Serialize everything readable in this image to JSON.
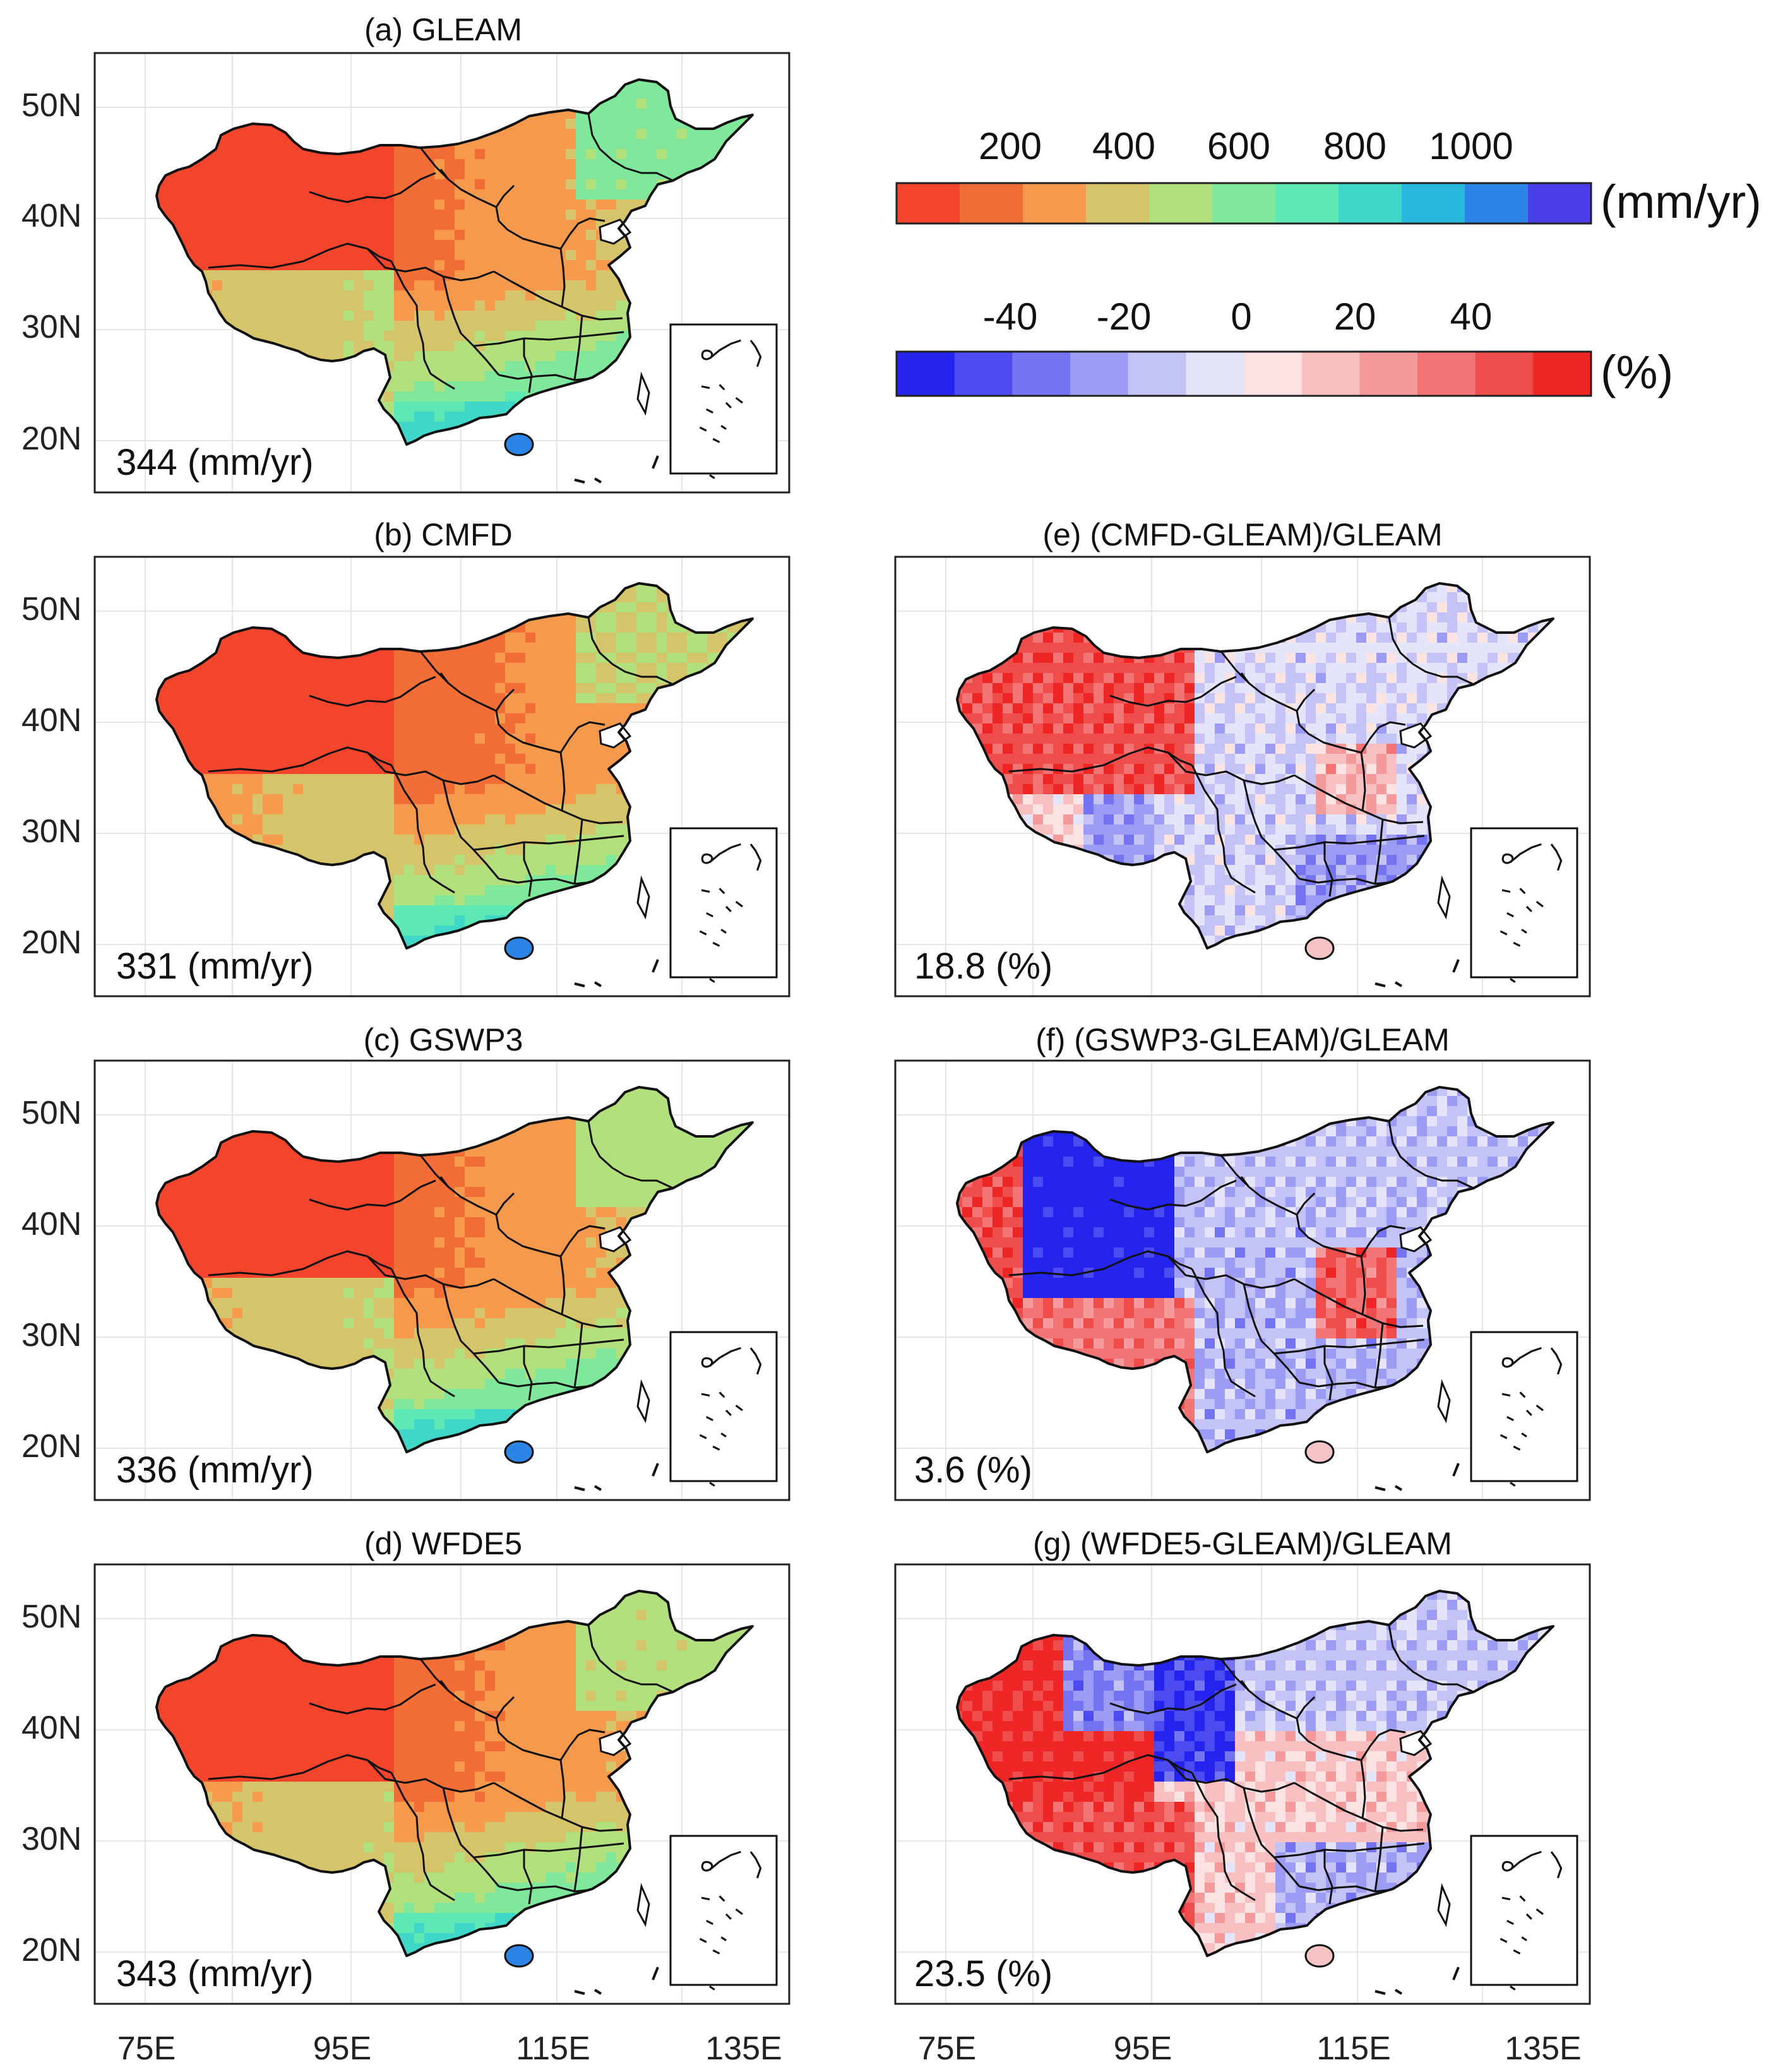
{
  "figure": {
    "colorbar_abs": {
      "labels": [
        "200",
        "400",
        "600",
        "800",
        "1000"
      ],
      "unit": "(mm/yr)",
      "colors": [
        "#f2452c",
        "#f36d36",
        "#f59a4c",
        "#d6c46a",
        "#b2e07c",
        "#7fe89a",
        "#5ee8b4",
        "#3fd7c8",
        "#27b8dd",
        "#2a85e6",
        "#4a3ee8"
      ]
    },
    "colorbar_pct": {
      "labels": [
        "-40",
        "-20",
        "0",
        "20",
        "40"
      ],
      "unit": "(%)",
      "colors": [
        "#2424ee",
        "#4b4bf0",
        "#7474f2",
        "#9c9cf4",
        "#c3c3f6",
        "#e4e4fa",
        "#fbe3e3",
        "#f8c0c0",
        "#f59a9a",
        "#f27474",
        "#ef4c4c",
        "#ee2626"
      ]
    },
    "lon_ticks": [
      "75E",
      "95E",
      "115E",
      "135E"
    ],
    "lat_ticks": [
      "50N",
      "40N",
      "30N",
      "20N"
    ],
    "panels": [
      {
        "id": "a",
        "title": "(a) GLEAM",
        "stat": "344 (mm/yr)",
        "kind": "abs",
        "scheme": "gleam"
      },
      {
        "id": "b",
        "title": "(b) CMFD",
        "stat": "331 (mm/yr)",
        "kind": "abs",
        "scheme": "cmfd"
      },
      {
        "id": "c",
        "title": "(c) GSWP3",
        "stat": "336 (mm/yr)",
        "kind": "abs",
        "scheme": "gswp3"
      },
      {
        "id": "d",
        "title": "(d) WFDE5",
        "stat": "343 (mm/yr)",
        "kind": "abs",
        "scheme": "wfde5"
      },
      {
        "id": "e",
        "title": "(e) (CMFD-GLEAM)/GLEAM",
        "stat": "18.8 (%)",
        "kind": "pct",
        "scheme": "e"
      },
      {
        "id": "f",
        "title": "(f) (GSWP3-GLEAM)/GLEAM",
        "stat": "3.6 (%)",
        "kind": "pct",
        "scheme": "f"
      },
      {
        "id": "g",
        "title": "(g) (WFDE5-GLEAM)/GLEAM",
        "stat": "23.5 (%)",
        "kind": "pct",
        "scheme": "g"
      }
    ]
  }
}
